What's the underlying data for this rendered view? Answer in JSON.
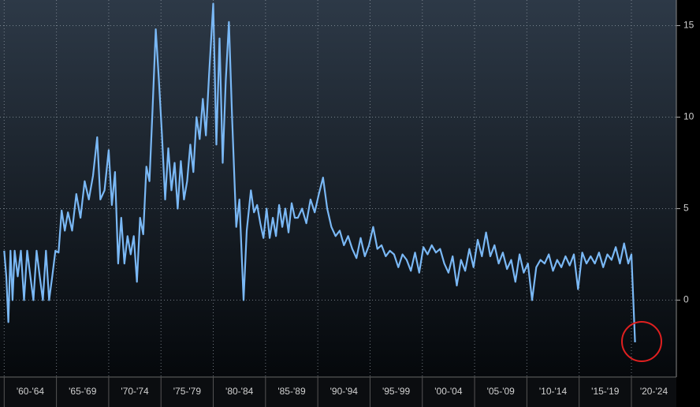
{
  "chart_data": {
    "type": "line",
    "color": "#7ab8f5",
    "grid": true,
    "xlim": [
      1959.6,
      2024.3
    ],
    "ylim": [
      -4.2,
      16.4
    ],
    "yticks": [
      0,
      5,
      10,
      15
    ],
    "xticks": [
      {
        "value": 1960,
        "label": "'60-'64"
      },
      {
        "value": 1965,
        "label": "'65-'69"
      },
      {
        "value": 1970,
        "label": "'70-'74"
      },
      {
        "value": 1975,
        "label": "'75-'79"
      },
      {
        "value": 1980,
        "label": "'80-'84"
      },
      {
        "value": 1985,
        "label": "'85-'89"
      },
      {
        "value": 1990,
        "label": "'90-'94"
      },
      {
        "value": 1995,
        "label": "'95-'99"
      },
      {
        "value": 2000,
        "label": "'00-'04"
      },
      {
        "value": 2005,
        "label": "'05-'09"
      },
      {
        "value": 2010,
        "label": "'10-'14"
      },
      {
        "value": 2015,
        "label": "'15-'19"
      },
      {
        "value": 2020,
        "label": "'20-'24"
      }
    ],
    "x": [
      1960.0,
      1960.2,
      1960.4,
      1960.6,
      1960.8,
      1961.0,
      1961.3,
      1961.6,
      1961.9,
      1962.2,
      1962.5,
      1962.8,
      1963.1,
      1963.4,
      1963.7,
      1964.0,
      1964.3,
      1964.6,
      1964.9,
      1965.2,
      1965.5,
      1965.8,
      1966.1,
      1966.5,
      1966.9,
      1967.3,
      1967.7,
      1968.1,
      1968.5,
      1968.9,
      1969.2,
      1969.6,
      1970.0,
      1970.3,
      1970.6,
      1970.9,
      1971.2,
      1971.5,
      1971.8,
      1972.1,
      1972.4,
      1972.7,
      1973.0,
      1973.3,
      1973.6,
      1973.9,
      1974.2,
      1974.5,
      1974.8,
      1975.1,
      1975.4,
      1975.7,
      1976.0,
      1976.3,
      1976.6,
      1976.9,
      1977.2,
      1977.5,
      1977.8,
      1978.1,
      1978.4,
      1978.7,
      1979.0,
      1979.3,
      1979.6,
      1980.0,
      1980.3,
      1980.6,
      1980.9,
      1981.2,
      1981.5,
      1981.8,
      1982.2,
      1982.5,
      1982.9,
      1983.2,
      1983.6,
      1983.9,
      1984.2,
      1984.5,
      1984.8,
      1985.1,
      1985.4,
      1985.7,
      1986.0,
      1986.3,
      1986.6,
      1986.9,
      1987.2,
      1987.5,
      1987.8,
      1988.1,
      1988.5,
      1988.9,
      1989.3,
      1989.7,
      1990.1,
      1990.5,
      1990.9,
      1991.3,
      1991.7,
      1992.1,
      1992.5,
      1992.9,
      1993.3,
      1993.7,
      1994.1,
      1994.5,
      1994.9,
      1995.3,
      1995.7,
      1996.1,
      1996.5,
      1996.9,
      1997.3,
      1997.7,
      1998.1,
      1998.5,
      1998.9,
      1999.3,
      1999.7,
      2000.1,
      2000.5,
      2000.9,
      2001.3,
      2001.7,
      2002.1,
      2002.5,
      2002.9,
      2003.3,
      2003.7,
      2004.1,
      2004.5,
      2004.9,
      2005.3,
      2005.7,
      2006.1,
      2006.5,
      2006.9,
      2007.3,
      2007.7,
      2008.1,
      2008.5,
      2008.9,
      2009.3,
      2009.7,
      2010.1,
      2010.5,
      2010.9,
      2011.3,
      2011.7,
      2012.1,
      2012.5,
      2012.9,
      2013.3,
      2013.7,
      2014.1,
      2014.5,
      2014.9,
      2015.3,
      2015.7,
      2016.1,
      2016.5,
      2016.9,
      2017.3,
      2017.7,
      2018.1,
      2018.5,
      2018.9,
      2019.3,
      2019.7,
      2020.0,
      2020.35
    ],
    "values": [
      2.7,
      1.3,
      -1.2,
      2.7,
      0,
      2.7,
      1.3,
      2.7,
      0,
      2.7,
      1.3,
      0,
      2.7,
      1.3,
      0,
      2.7,
      0,
      1.3,
      2.7,
      2.6,
      4.9,
      3.8,
      4.8,
      3.8,
      5.8,
      4.5,
      6.5,
      5.5,
      6.8,
      8.9,
      5.5,
      6.0,
      8.2,
      5.2,
      7.0,
      2.0,
      4.5,
      2.0,
      3.5,
      2.5,
      3.5,
      1.0,
      4.5,
      3.6,
      7.3,
      6.5,
      10.5,
      14.8,
      12.0,
      9.0,
      5.5,
      8.3,
      6.0,
      7.5,
      5.0,
      7.6,
      5.5,
      6.5,
      8.5,
      7.0,
      10.0,
      8.8,
      11.0,
      9.0,
      12.3,
      16.2,
      8.5,
      14.3,
      7.5,
      12.0,
      15.2,
      10.0,
      4.0,
      5.5,
      0.0,
      3.8,
      6.0,
      4.8,
      5.2,
      4.2,
      3.4,
      5.0,
      3.4,
      4.5,
      3.5,
      5.2,
      4.0,
      5.0,
      3.7,
      5.3,
      4.5,
      4.5,
      5.0,
      4.2,
      5.5,
      4.8,
      5.8,
      6.7,
      5.0,
      4.0,
      3.5,
      3.8,
      3.0,
      3.5,
      2.8,
      2.3,
      3.4,
      2.4,
      3.0,
      4.0,
      2.8,
      3.0,
      2.4,
      2.7,
      2.5,
      1.8,
      2.5,
      2.2,
      1.6,
      2.6,
      1.5,
      2.9,
      2.5,
      3.0,
      2.6,
      2.8,
      2.0,
      1.5,
      2.4,
      0.8,
      2.2,
      1.6,
      2.8,
      1.8,
      3.3,
      2.4,
      3.7,
      2.4,
      3.0,
      2.0,
      2.6,
      1.7,
      2.2,
      1.0,
      2.5,
      1.5,
      2.0,
      0.0,
      1.8,
      2.2,
      2.0,
      2.5,
      1.6,
      2.2,
      1.8,
      2.4,
      1.9,
      2.5,
      0.6,
      2.6,
      2.0,
      2.4,
      2.0,
      2.6,
      1.8,
      2.5,
      2.2,
      2.9,
      2.0,
      3.1,
      2.0,
      2.5,
      -2.3
    ]
  }
}
